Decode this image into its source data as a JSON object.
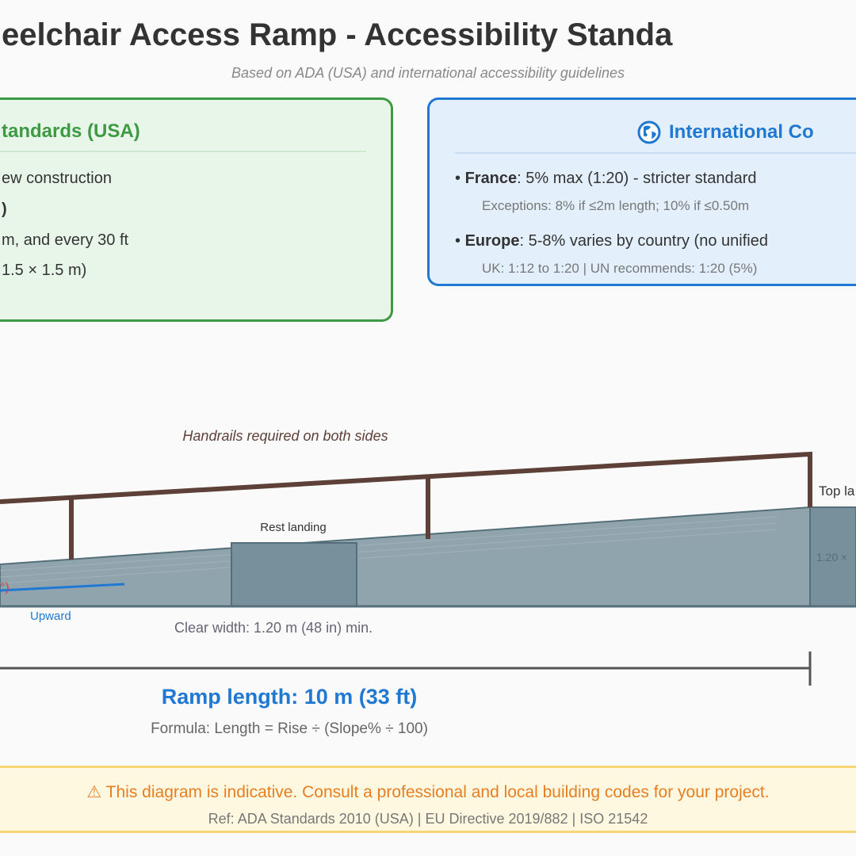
{
  "header": {
    "title": "eelchair Access Ramp - Accessibility Standa",
    "subtitle": "Based on ADA (USA) and international accessibility guidelines"
  },
  "ada_box": {
    "heading": "tandards (USA)",
    "lines": [
      "ew construction",
      ")",
      "m, and every 30 ft",
      "1.5 × 1.5 m)"
    ],
    "color": "#3d9a42"
  },
  "intl_box": {
    "icon": "globe-icon",
    "heading": "International Co",
    "items": [
      {
        "label": "France",
        "text": ": 5% max (1:20) - stricter standard",
        "note": "Exceptions: 8% if ≤2m length; 10% if ≤0.50m"
      },
      {
        "label": "Europe",
        "text": ": 5-8% varies by country (no unified",
        "note": "UK: 1:12 to 1:20 | UN recommends: 1:20 (5%)"
      }
    ],
    "color": "#1f78d1"
  },
  "diagram": {
    "handrail_note": "Handrails required on both sides",
    "rest_landing": "Rest landing",
    "top_landing": "Top la",
    "top_landing_dim": "1.20 ×",
    "slope_fragment": "°)",
    "direction": "Upward",
    "clear_width": "Clear width: 1.20 m (48 in) min.",
    "ramp_length": "Ramp length: 10 m (33 ft)",
    "formula": "Formula: Length = Rise ÷ (Slope% ÷ 100)",
    "colors": {
      "ramp": "#90a4ae",
      "landing": "#78909c",
      "handrail": "#5d4037",
      "accent": "#1f78d1"
    }
  },
  "footer": {
    "warning": "This diagram is indicative. Consult a professional and local building codes for your project.",
    "reference": "Ref: ADA Standards 2010 (USA) | EU Directive 2019/882 | ISO 21542"
  }
}
